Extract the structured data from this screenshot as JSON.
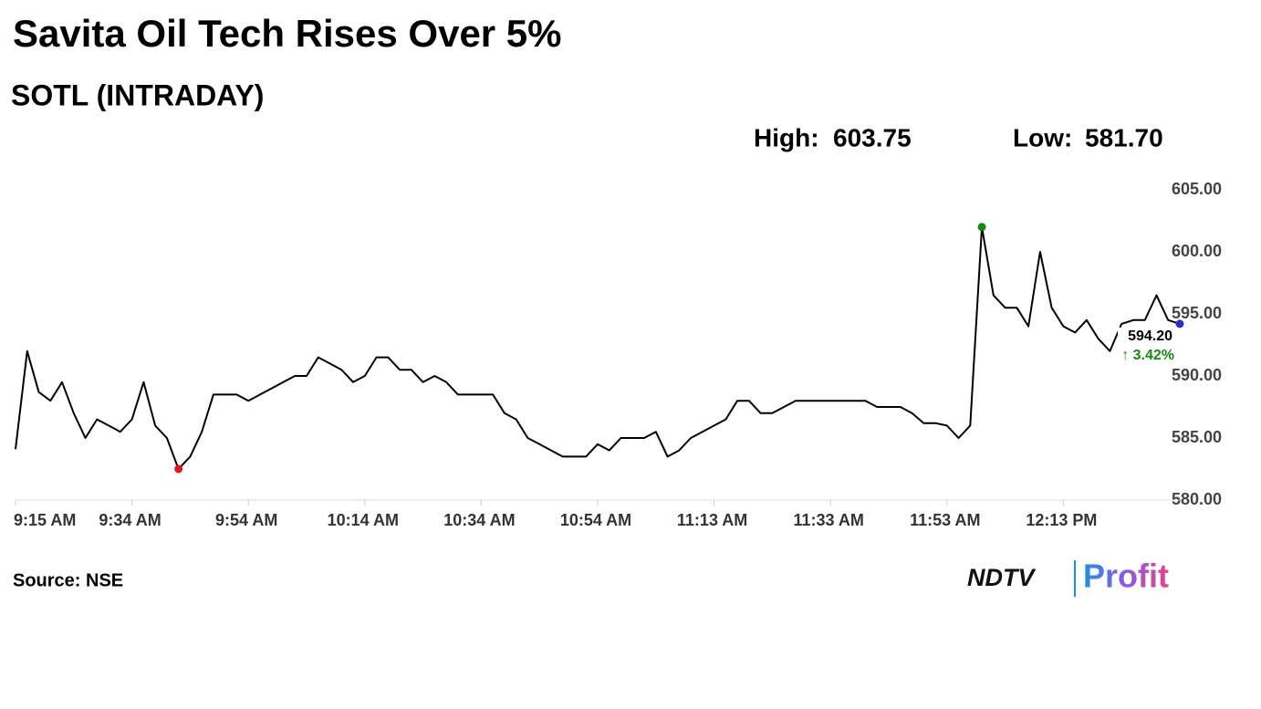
{
  "chart_data": {
    "type": "line",
    "title": "Savita Oil Tech Rises Over 5%",
    "subtitle": "SOTL (INTRADAY)",
    "stats": [
      {
        "label": "High:",
        "value": "603.75"
      },
      {
        "label": "Low:",
        "value": "581.70"
      }
    ],
    "categories": [
      "9:15 AM",
      null,
      null,
      null,
      null,
      null,
      null,
      null,
      null,
      null,
      "9:34 AM",
      null,
      null,
      null,
      null,
      null,
      null,
      null,
      null,
      null,
      "9:54 AM",
      null,
      null,
      null,
      null,
      null,
      null,
      null,
      null,
      null,
      "10:14 AM",
      null,
      null,
      null,
      null,
      null,
      null,
      null,
      null,
      null,
      "10:34 AM",
      null,
      null,
      null,
      null,
      null,
      null,
      null,
      null,
      null,
      "10:54 AM",
      null,
      null,
      null,
      null,
      null,
      null,
      null,
      null,
      null,
      "11:13 AM",
      null,
      null,
      null,
      null,
      null,
      null,
      null,
      null,
      null,
      "11:33 AM",
      null,
      null,
      null,
      null,
      null,
      null,
      null,
      null,
      null,
      "11:53 AM",
      null,
      null,
      null,
      null,
      null,
      null,
      null,
      null,
      null,
      "12:13 PM",
      null,
      null,
      null,
      null,
      null,
      null,
      null,
      null,
      null,
      null
    ],
    "values": [
      584.1,
      592,
      588.7,
      588,
      589.5,
      587,
      585,
      586.5,
      586,
      585.5,
      586.5,
      589.5,
      586,
      585,
      582.5,
      583.5,
      585.5,
      588.5,
      588.5,
      588.5,
      588,
      588.5,
      589,
      589.5,
      590,
      590,
      591.5,
      591,
      590.5,
      589.5,
      590,
      591.5,
      591.5,
      590.5,
      590.5,
      589.5,
      590,
      589.5,
      588.5,
      588.5,
      588.5,
      588.5,
      587,
      586.5,
      585,
      584.5,
      584,
      583.5,
      583.5,
      583.5,
      584.5,
      584,
      585,
      585,
      585,
      585.5,
      583.5,
      584,
      585,
      585.5,
      586,
      586.5,
      588,
      588,
      587,
      587,
      587.5,
      588,
      588,
      588,
      588,
      588,
      588,
      588,
      587.5,
      587.5,
      587.5,
      587,
      586.2,
      586.2,
      586,
      585,
      586,
      602,
      596.5,
      595.5,
      595.5,
      594,
      600,
      595.5,
      594,
      593.5,
      594.5,
      593,
      592,
      594.2,
      594.5,
      594.5,
      596.5,
      594.5,
      594.2
    ],
    "color": "#000000",
    "low_color": "#e8141b",
    "high_color": "#138a13",
    "last_color": "#1f2fd0",
    "last_label": "594.20",
    "change_label": "↑ 3.42%",
    "change_color": "#138a13",
    "ylim": [
      580,
      605
    ],
    "yticks": [
      {
        "value": 580,
        "label": "580.00"
      },
      {
        "value": 585,
        "label": "585.00"
      },
      {
        "value": 590,
        "label": "590.00"
      },
      {
        "value": 595,
        "label": "595.00"
      },
      {
        "value": 600,
        "label": "600.00"
      },
      {
        "value": 605,
        "label": "605.00"
      }
    ],
    "source": "Source: NSE",
    "brand": [
      "NDTV",
      "Profit"
    ]
  }
}
